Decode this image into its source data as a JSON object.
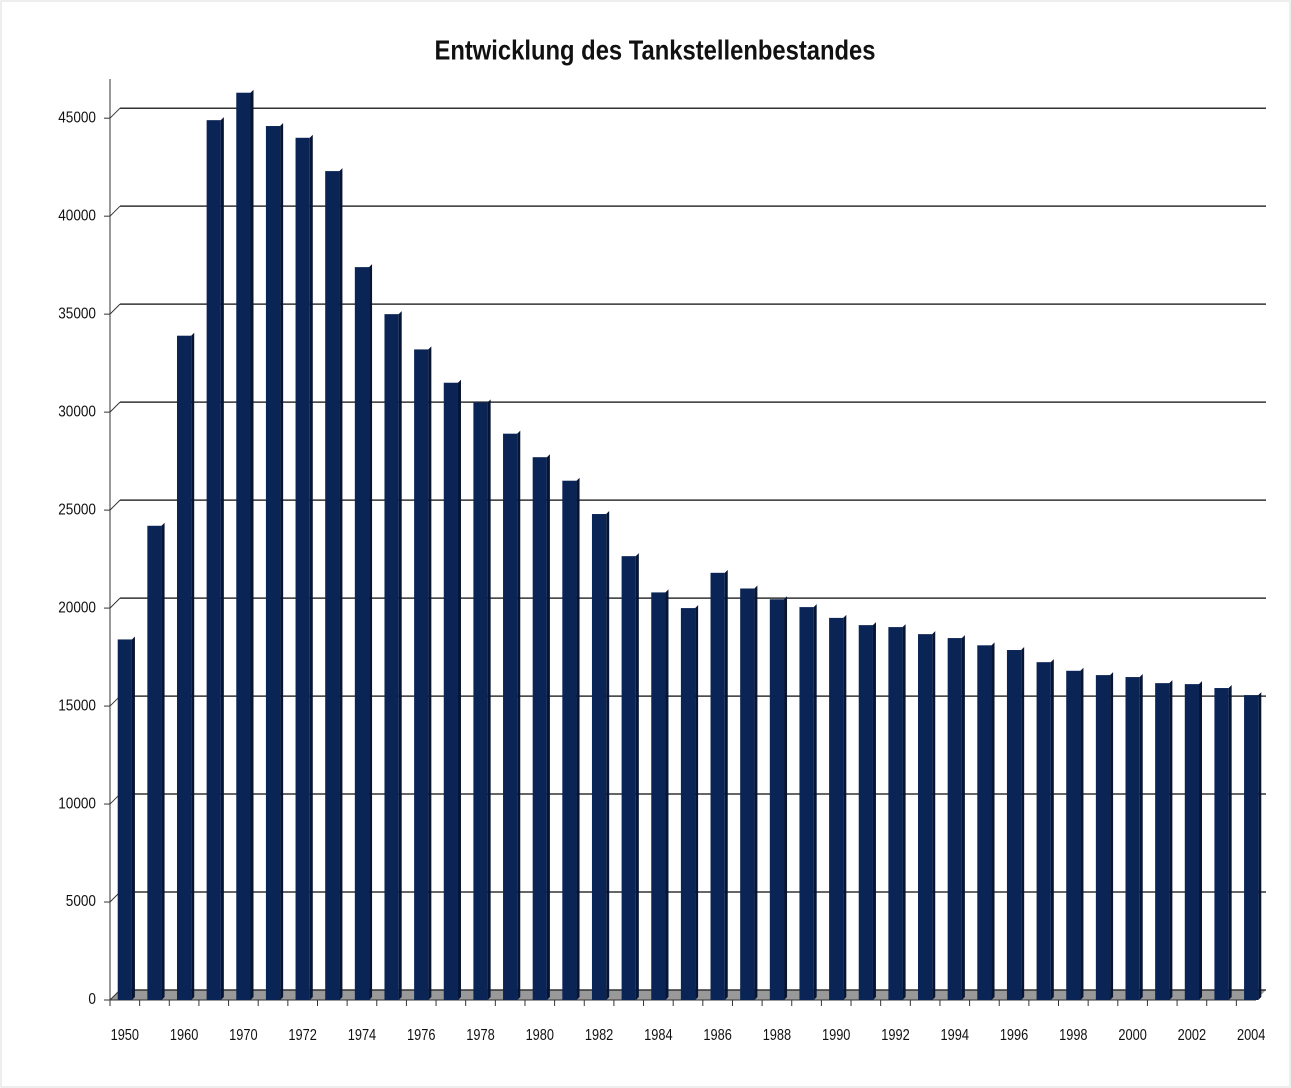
{
  "chart_data": {
    "type": "bar",
    "title": "Entwicklung des Tankstellenbestandes",
    "categories": [
      "1950",
      null,
      "1960",
      null,
      "1970",
      null,
      "1972",
      null,
      "1974",
      null,
      "1976",
      null,
      "1978",
      null,
      "1980",
      null,
      "1982",
      null,
      "1984",
      null,
      "1986",
      null,
      "1988",
      null,
      "1990",
      null,
      "1992",
      null,
      "1994",
      null,
      "1996",
      null,
      "1998",
      null,
      "2000",
      null,
      "2002",
      null,
      "2004"
    ],
    "values": [
      18400,
      24200,
      33900,
      44900,
      46300,
      44600,
      44000,
      42300,
      37400,
      35000,
      33200,
      31500,
      30500,
      28900,
      27700,
      26500,
      24800,
      22650,
      20800,
      20000,
      21800,
      21000,
      20450,
      20050,
      19500,
      19130,
      19030,
      18670,
      18470,
      18100,
      17860,
      17240,
      16800,
      16580,
      16480,
      16170,
      16120,
      15920,
      15560
    ],
    "color": "#0b2456",
    "ylim": [
      0,
      47000
    ],
    "yticks": [
      0,
      5000,
      10000,
      15000,
      20000,
      25000,
      30000,
      35000,
      40000,
      45000
    ],
    "grid": true
  }
}
